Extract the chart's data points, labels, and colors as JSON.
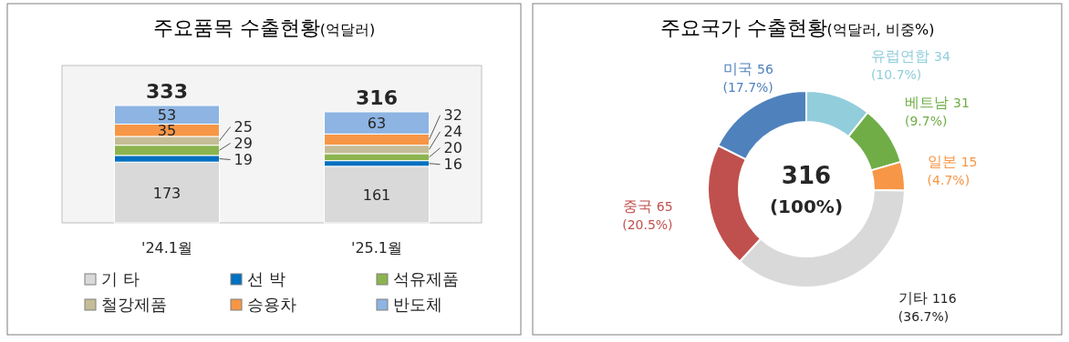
{
  "chart_data": [
    {
      "type": "bar",
      "title": "주요품목 수출현황(억달러)",
      "categories": [
        "'24.1월",
        "'25.1월"
      ],
      "stacked": true,
      "data_labels": true,
      "totals": [
        "333",
        "316"
      ],
      "legend": "bottom",
      "series": [
        {
          "name": "기 타",
          "color": "#d9d9d9",
          "values": [
            173,
            161
          ]
        },
        {
          "name": "선 박",
          "color": "#0070c0",
          "values": [
            19,
            16
          ]
        },
        {
          "name": "석유제품",
          "color": "#8cb44e",
          "values": [
            29,
            20
          ]
        },
        {
          "name": "철강제품",
          "color": "#c4bd97",
          "values": [
            25,
            24
          ]
        },
        {
          "name": "승용차",
          "color": "#f79646",
          "values": [
            35,
            32
          ]
        },
        {
          "name": "반도체",
          "color": "#8db4e2",
          "values": [
            53,
            63
          ]
        }
      ]
    },
    {
      "type": "donut",
      "title": "주요국가 수출현황(억달러, 비중%)",
      "categories": [
        "유럽연합",
        "베트남",
        "일본",
        "기타",
        "중국",
        "미국"
      ],
      "values": [
        34,
        31,
        15,
        116,
        65,
        56
      ],
      "colors": [
        "#92cddc",
        "#70ad47",
        "#f79646",
        "#d9d9d9",
        "#c0504d",
        "#4f81bd"
      ],
      "value_labels": [
        "34 (10.7%)",
        "31 (9.7%)",
        "15 (4.7%)",
        "116 (36.7%)",
        "65 (20.5%)",
        "56 (17.7%)"
      ],
      "annotations": [
        "316",
        "(100%)"
      ]
    }
  ]
}
